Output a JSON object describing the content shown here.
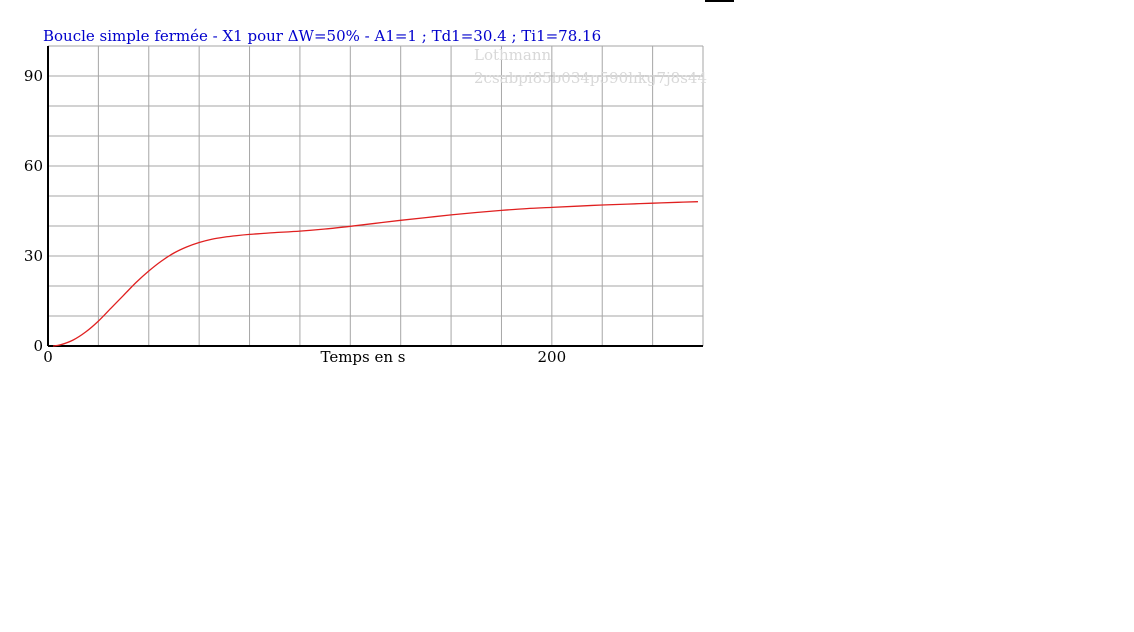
{
  "chart_data": {
    "type": "line",
    "title": "Boucle simple fermée - X1 pour ΔW=50% - A1=1 ; Td1=30.4 ; Ti1=78.16",
    "title_color": "#0000cc",
    "watermark": [
      "Lothmann",
      "2csabpi85b034p590hkg7j8s44"
    ],
    "xlabel": "Temps en s",
    "ylabel": "",
    "xlim": [
      0,
      260
    ],
    "ylim": [
      0,
      100
    ],
    "x_grid_step": 20,
    "y_grid_step": 10,
    "xticks": [
      {
        "value": 0,
        "label": "0"
      },
      {
        "value": 200,
        "label": "200"
      }
    ],
    "yticks": [
      {
        "value": 0,
        "label": "0"
      },
      {
        "value": 30,
        "label": "30"
      },
      {
        "value": 60,
        "label": "60"
      },
      {
        "value": 90,
        "label": "90"
      }
    ],
    "grid": true,
    "series": [
      {
        "name": "",
        "color": "#e02020",
        "x": [
          2,
          5,
          10,
          15,
          20,
          25,
          30,
          35,
          40,
          45,
          50,
          55,
          60,
          65,
          70,
          75,
          80,
          85,
          90,
          100,
          110,
          120,
          130,
          140,
          150,
          160,
          170,
          180,
          190,
          200,
          210,
          220,
          230,
          240,
          250,
          258
        ],
        "y": [
          0,
          0.4,
          2.0,
          4.7,
          8.3,
          12.6,
          16.9,
          21.2,
          25.0,
          28.3,
          31.0,
          33.0,
          34.5,
          35.6,
          36.3,
          36.8,
          37.2,
          37.5,
          37.8,
          38.3,
          39.0,
          39.9,
          40.9,
          41.9,
          42.8,
          43.7,
          44.5,
          45.2,
          45.8,
          46.2,
          46.6,
          47.0,
          47.3,
          47.6,
          47.9,
          48.1
        ]
      }
    ]
  }
}
